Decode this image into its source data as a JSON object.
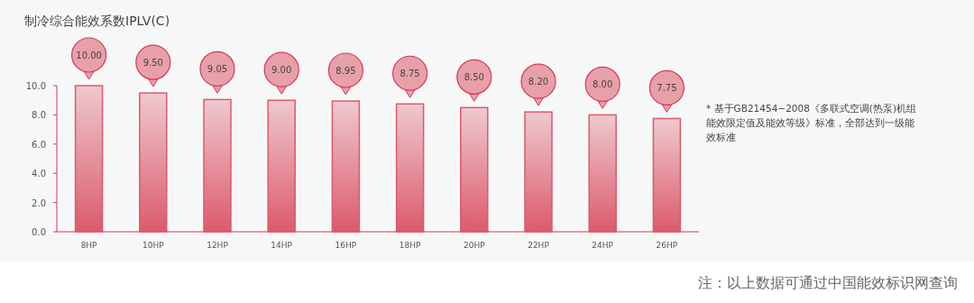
{
  "chart_data": {
    "type": "bar",
    "title": "制冷综合能效系数IPLV(C)",
    "categories": [
      "8HP",
      "10HP",
      "12HP",
      "14HP",
      "16HP",
      "18HP",
      "20HP",
      "22HP",
      "24HP",
      "26HP"
    ],
    "values": [
      10.0,
      9.5,
      9.05,
      9.0,
      8.95,
      8.75,
      8.5,
      8.2,
      8.0,
      7.75
    ],
    "value_labels": [
      "10.00",
      "9.50",
      "9.05",
      "9.00",
      "8.95",
      "8.75",
      "8.50",
      "8.20",
      "8.00",
      "7.75"
    ],
    "color": "#dc5a6c",
    "ylim": [
      0,
      10
    ],
    "yticks": [
      {
        "value": 0,
        "label": "0.0"
      },
      {
        "value": 2,
        "label": "2.0"
      },
      {
        "value": 4,
        "label": "4.0"
      },
      {
        "value": 6,
        "label": "6.0"
      },
      {
        "value": 8,
        "label": "8.0"
      },
      {
        "value": 10,
        "label": "10.0"
      }
    ],
    "grid": false,
    "annotations": [
      "* 基于GB21454−2008《多联式空调(热泵)机组能效限定值及能效等级》标准，全部达到一级能效标准",
      "注：以上数据可通过中国能效标识网查询"
    ]
  }
}
